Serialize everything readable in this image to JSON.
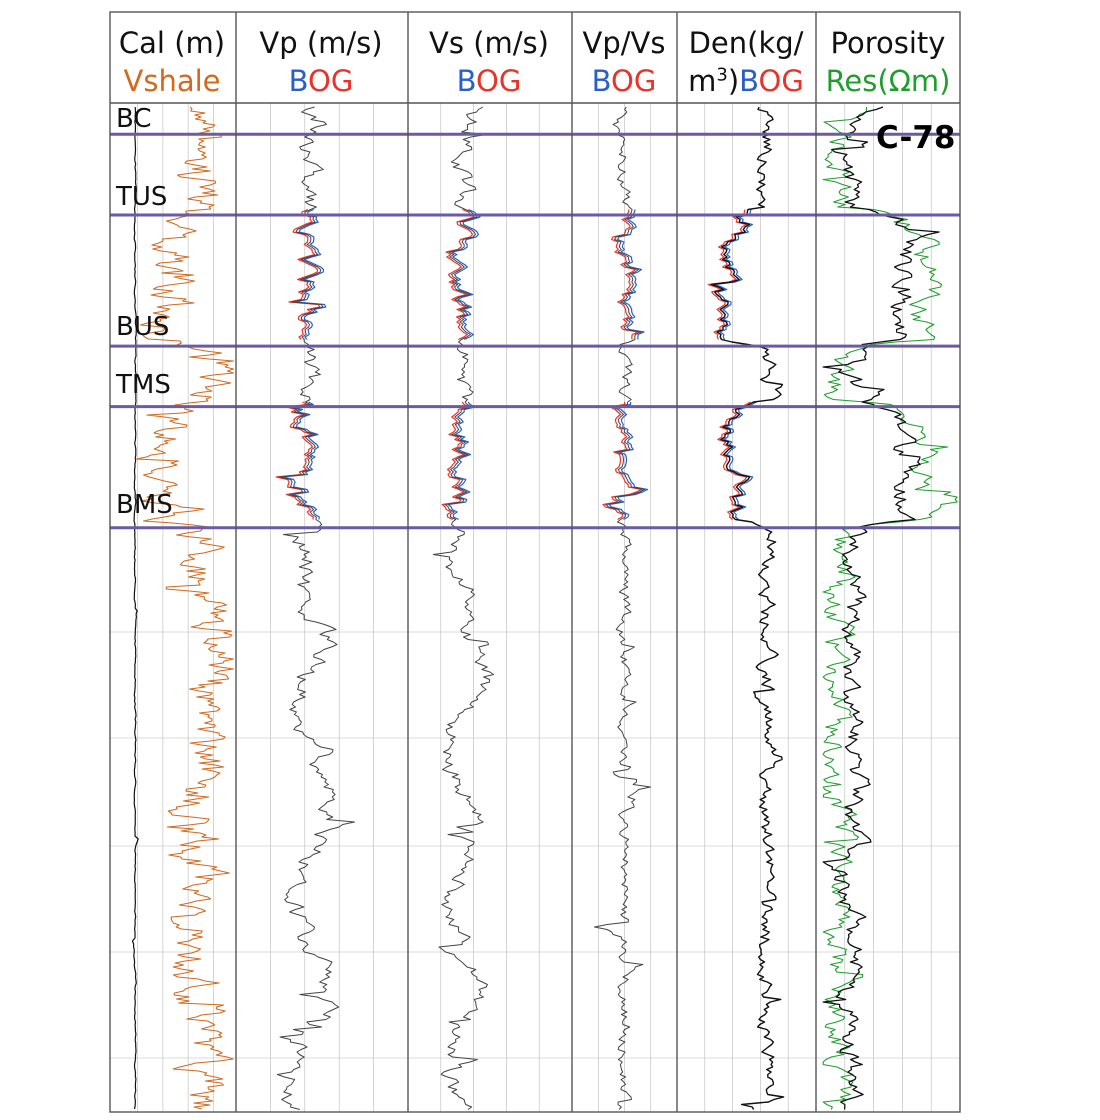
{
  "chart_data": {
    "type": "line",
    "well_name": "C-78",
    "colors": {
      "B": "#2a5fc7",
      "O": "#e8332a",
      "G": "#1f9e2d",
      "vshale": "#d2691e",
      "grid": "#b8b8b8",
      "border": "#555555",
      "formation_line": "#6b5aa5",
      "curve": "#111111"
    },
    "tracks": [
      {
        "id": "t1",
        "line1": "Cal (m)",
        "line2": "Vshale",
        "line2_color": "#d2691e"
      },
      {
        "id": "t2",
        "line1": "Vp (m/s)",
        "line2": "BOG"
      },
      {
        "id": "t3",
        "line1": "Vs (m/s)",
        "line2": "BOG"
      },
      {
        "id": "t4",
        "line1": "Vp/Vs",
        "line2": "BOG"
      },
      {
        "id": "t5",
        "line1a": "Den(kg/",
        "line2a": "m",
        "line2sup": "3",
        "line2b": ")",
        "line2c": "BOG"
      },
      {
        "id": "t6",
        "line1": "Porosity",
        "line2": "Res(Ωm)",
        "line2_color": "#1f9e2d"
      }
    ],
    "formations": [
      {
        "name": "BC",
        "rel_depth": 0.025
      },
      {
        "name": "TUS",
        "rel_depth": 0.105
      },
      {
        "name": "BUS",
        "rel_depth": 0.235
      },
      {
        "name": "TMS",
        "rel_depth": 0.295
      },
      {
        "name": "BMS",
        "rel_depth": 0.415
      }
    ],
    "zones": [
      {
        "from": "BC",
        "to": "TUS"
      },
      {
        "from": "TUS",
        "to": "BUS"
      },
      {
        "from": "BUS",
        "to": "TMS"
      },
      {
        "from": "TMS",
        "to": "BMS"
      }
    ]
  }
}
